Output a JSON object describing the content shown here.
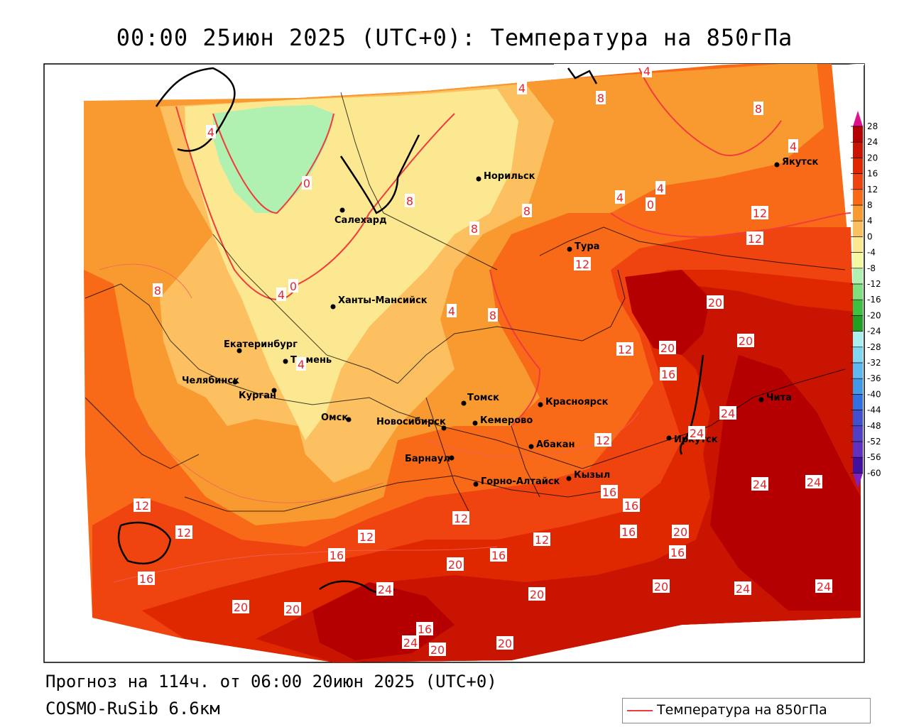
{
  "title": "00:00 25июн 2025 (UTC+0): Температура на 850гПа",
  "forecast_line": "Прогноз на 114ч. от 06:00 20июн 2025 (UTC+0)",
  "model": "COSMO-RuSib 6.6км",
  "legend": {
    "label": "Температура на 850гПа",
    "line_color": "#f03c3c"
  },
  "colorbar": {
    "ticks": [
      "28",
      "24",
      "20",
      "16",
      "12",
      "8",
      "4",
      "0",
      "-4",
      "-8",
      "-12",
      "-16",
      "-20",
      "-24",
      "-28",
      "-32",
      "-36",
      "-40",
      "-44",
      "-48",
      "-52",
      "-56",
      "-60"
    ]
  },
  "cities": [
    {
      "name": "Якутск"
    },
    {
      "name": "Норильск"
    },
    {
      "name": "Салехард"
    },
    {
      "name": "Тура"
    },
    {
      "name": "Ханты-Мансийск"
    },
    {
      "name": "Екатеринбург"
    },
    {
      "name": "Тюмень"
    },
    {
      "name": "Челябинск"
    },
    {
      "name": "Курган"
    },
    {
      "name": "Омск"
    },
    {
      "name": "Томск"
    },
    {
      "name": "Красноярск"
    },
    {
      "name": "Новосибирск"
    },
    {
      "name": "Кемерово"
    },
    {
      "name": "Абакан"
    },
    {
      "name": "Барнаул"
    },
    {
      "name": "Иркутск"
    },
    {
      "name": "Чита"
    },
    {
      "name": "Горно-Алтайск"
    },
    {
      "name": "Кызыл"
    }
  ],
  "contour_labels": [
    "4",
    "4",
    "8",
    "8",
    "4",
    "0",
    "4",
    "4",
    "4",
    "0",
    "8",
    "8",
    "8",
    "12",
    "12",
    "12",
    "0",
    "4",
    "8",
    "4",
    "4",
    "8",
    "12",
    "20",
    "20",
    "20",
    "12",
    "16",
    "24",
    "24",
    "12",
    "24",
    "24",
    "12",
    "12",
    "16",
    "16",
    "20",
    "16",
    "20",
    "16",
    "12",
    "16",
    "20",
    "16",
    "12",
    "20",
    "24",
    "24",
    "20",
    "20",
    "24",
    "16",
    "24",
    "20",
    "16",
    "20"
  ],
  "palette": {
    "c28": "#b40000",
    "c24": "#c81400",
    "c20": "#e02800",
    "c16": "#f04410",
    "c12": "#f86a18",
    "c8": "#f89a30",
    "c4": "#fcc060",
    "c0": "#fce890",
    "cm4": "#f4f8a0",
    "cm8": "#b0f0b0",
    "cm12": "#80e080",
    "cm16": "#40c040",
    "cm20": "#20a020",
    "cm24": "#a8f0f0",
    "cm28": "#80d8f0",
    "cm32": "#60b8f0",
    "cm36": "#4098e8",
    "cm40": "#3070e0",
    "cm44": "#4050d0",
    "cm48": "#5040c8",
    "cm52": "#6030c0",
    "cm56": "#4010a0",
    "cm60": "#300090",
    "contour": "#f03c3c",
    "top_arrow": "#e0108a",
    "bottom_arrow": "#8020c0"
  }
}
